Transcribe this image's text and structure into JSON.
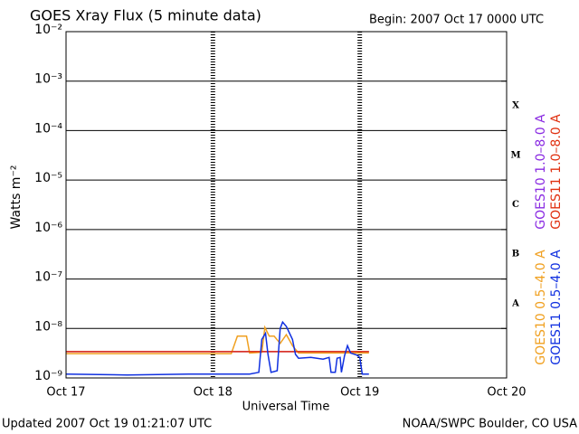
{
  "chart_data": {
    "type": "line",
    "title": "GOES Xray Flux (5 minute data)",
    "subtitle": "Begin:  2007 Oct 17 0000 UTC",
    "x_label": "Universal Time",
    "y_label": "Watts m⁻²",
    "footer_left": "Updated 2007 Oct 19 01:21:07 UTC",
    "footer_right": "NOAA/SWPC Boulder, CO USA",
    "log_y": true,
    "grid": true,
    "xlim": [
      0,
      72
    ],
    "xticks": [
      {
        "value": 0,
        "label": "Oct 17"
      },
      {
        "value": 24,
        "label": "Oct 18"
      },
      {
        "value": 48,
        "label": "Oct 19"
      },
      {
        "value": 72,
        "label": "Oct 20"
      }
    ],
    "ylim": [
      1e-09,
      0.01
    ],
    "yticks": [
      {
        "value": 1e-09,
        "label": "10⁻⁹"
      },
      {
        "value": 1e-08,
        "label": "10⁻⁸"
      },
      {
        "value": 1e-07,
        "label": "10⁻⁷"
      },
      {
        "value": 1e-06,
        "label": "10⁻⁶"
      },
      {
        "value": 1e-05,
        "label": "10⁻⁵"
      },
      {
        "value": 0.0001,
        "label": "10⁻⁴"
      },
      {
        "value": 0.001,
        "label": "10⁻³"
      },
      {
        "value": 0.01,
        "label": "10⁻²"
      }
    ],
    "flare_classes": [
      "A",
      "B",
      "C",
      "M",
      "X"
    ],
    "series": [
      {
        "name": "GOES10 1.0–8.0 A",
        "color": "#8a2be2",
        "x": [
          0,
          49.5
        ],
        "values": [
          3.4e-09,
          3.4e-09
        ]
      },
      {
        "name": "GOES11 1.0–8.0 A",
        "color": "#e03010",
        "x": [
          0,
          49.5
        ],
        "values": [
          3.4e-09,
          3.4e-09
        ]
      },
      {
        "name": "GOES10 0.5–4.0 A",
        "color": "#f0a020",
        "x": [
          0,
          27,
          28,
          29.5,
          30,
          32,
          32.5,
          33.2,
          34,
          35,
          36,
          37,
          38,
          49.5
        ],
        "values": [
          3.1e-09,
          3.1e-09,
          7e-09,
          7e-09,
          3.2e-09,
          3.3e-09,
          1.05e-08,
          7e-09,
          7e-09,
          5e-09,
          7.5e-09,
          4.5e-09,
          3.2e-09,
          3.2e-09
        ]
      },
      {
        "name": "GOES11 0.5–4.0 A",
        "color": "#1030e0",
        "x": [
          0,
          10,
          20,
          30,
          31.5,
          32,
          32.6,
          33,
          33.5,
          34.5,
          35,
          35.4,
          36,
          37,
          37.5,
          38,
          40,
          42,
          43,
          43.3,
          44,
          44.3,
          44.8,
          45,
          45.5,
          46,
          46.5,
          47.5,
          48,
          48.4,
          49.5
        ],
        "values": [
          1.2e-09,
          1.15e-09,
          1.2e-09,
          1.2e-09,
          1.3e-09,
          6e-09,
          8e-09,
          3e-09,
          1.3e-09,
          1.4e-09,
          1e-08,
          1.35e-08,
          1.1e-08,
          6e-09,
          3e-09,
          2.5e-09,
          2.6e-09,
          2.4e-09,
          2.6e-09,
          1.3e-09,
          1.3e-09,
          2.5e-09,
          2.6e-09,
          1.3e-09,
          2.8e-09,
          4.5e-09,
          3.2e-09,
          2.9e-09,
          2.6e-09,
          1.2e-09,
          1.2e-09
        ]
      }
    ]
  }
}
